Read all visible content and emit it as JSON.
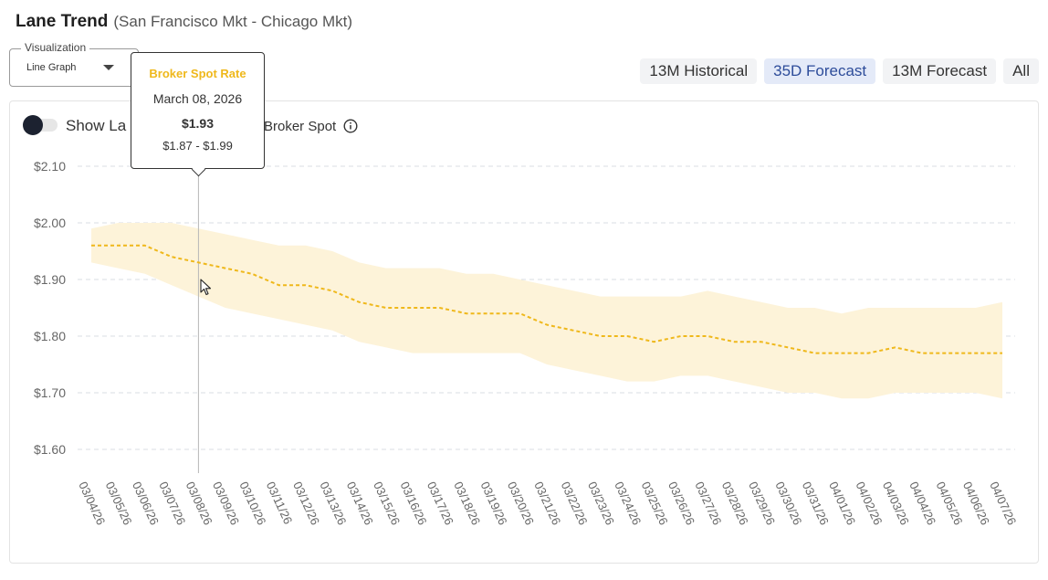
{
  "header": {
    "title": "Lane Trend",
    "subtitle": "(San Francisco Mkt - Chicago Mkt)"
  },
  "visualization": {
    "label": "Visualization",
    "value": "Line Graph"
  },
  "range_tabs": [
    {
      "label": "13M Historical",
      "active": false
    },
    {
      "label": "35D Forecast",
      "active": true
    },
    {
      "label": "13M Forecast",
      "active": false
    },
    {
      "label": "All",
      "active": false
    }
  ],
  "controls": {
    "toggle_label": "Show La",
    "legend_label": "Broker Spot"
  },
  "tooltip": {
    "title": "Broker Spot Rate",
    "date": "March 08, 2026",
    "value": "$1.93",
    "range": "$1.87 - $1.99"
  },
  "colors": {
    "line": "#efb81b",
    "band": "#fdf3d9",
    "grid": "#d8dce3",
    "accent_tab": "#2d4c9a"
  },
  "icons": {
    "info": "info-icon",
    "dropdown": "chevron-down-icon",
    "cursor": "mouse-pointer-icon"
  },
  "chart_data": {
    "type": "line",
    "ylim": [
      1.6,
      2.1
    ],
    "y_ticks": [
      "$2.10",
      "$2.00",
      "$1.90",
      "$1.80",
      "$1.70",
      "$1.60"
    ],
    "y_tick_values": [
      2.1,
      2.0,
      1.9,
      1.8,
      1.7,
      1.6
    ],
    "x": [
      "03/04/26",
      "03/05/26",
      "03/06/26",
      "03/07/26",
      "03/08/26",
      "03/09/26",
      "03/10/26",
      "03/11/26",
      "03/12/26",
      "03/13/26",
      "03/14/26",
      "03/15/26",
      "03/16/26",
      "03/17/26",
      "03/18/26",
      "03/19/26",
      "03/20/26",
      "03/21/26",
      "03/22/26",
      "03/23/26",
      "03/24/26",
      "03/25/26",
      "03/26/26",
      "03/27/26",
      "03/28/26",
      "03/29/26",
      "03/30/26",
      "03/31/26",
      "04/01/26",
      "04/02/26",
      "04/03/26",
      "04/04/26",
      "04/05/26",
      "04/06/26",
      "04/07/26"
    ],
    "series": [
      {
        "name": "Broker Spot",
        "values": [
          1.96,
          1.96,
          1.96,
          1.94,
          1.93,
          1.92,
          1.91,
          1.89,
          1.89,
          1.88,
          1.86,
          1.85,
          1.85,
          1.85,
          1.84,
          1.84,
          1.84,
          1.82,
          1.81,
          1.8,
          1.8,
          1.79,
          1.8,
          1.8,
          1.79,
          1.79,
          1.78,
          1.77,
          1.77,
          1.77,
          1.78,
          1.77,
          1.77,
          1.77,
          1.77
        ],
        "upper": [
          1.99,
          2.0,
          2.0,
          2.0,
          1.99,
          1.98,
          1.97,
          1.96,
          1.96,
          1.95,
          1.93,
          1.92,
          1.92,
          1.92,
          1.91,
          1.91,
          1.9,
          1.89,
          1.88,
          1.87,
          1.87,
          1.87,
          1.87,
          1.88,
          1.87,
          1.86,
          1.85,
          1.85,
          1.84,
          1.85,
          1.85,
          1.85,
          1.85,
          1.85,
          1.86
        ],
        "lower": [
          1.93,
          1.92,
          1.91,
          1.89,
          1.87,
          1.85,
          1.84,
          1.83,
          1.82,
          1.81,
          1.79,
          1.78,
          1.77,
          1.77,
          1.77,
          1.77,
          1.77,
          1.75,
          1.74,
          1.73,
          1.72,
          1.72,
          1.73,
          1.73,
          1.72,
          1.71,
          1.7,
          1.7,
          1.69,
          1.69,
          1.7,
          1.7,
          1.7,
          1.7,
          1.69
        ]
      }
    ],
    "highlight": {
      "x": "03/08/26",
      "value": 1.93,
      "low": 1.87,
      "high": 1.99
    },
    "grid": true,
    "legend": "top-left"
  }
}
